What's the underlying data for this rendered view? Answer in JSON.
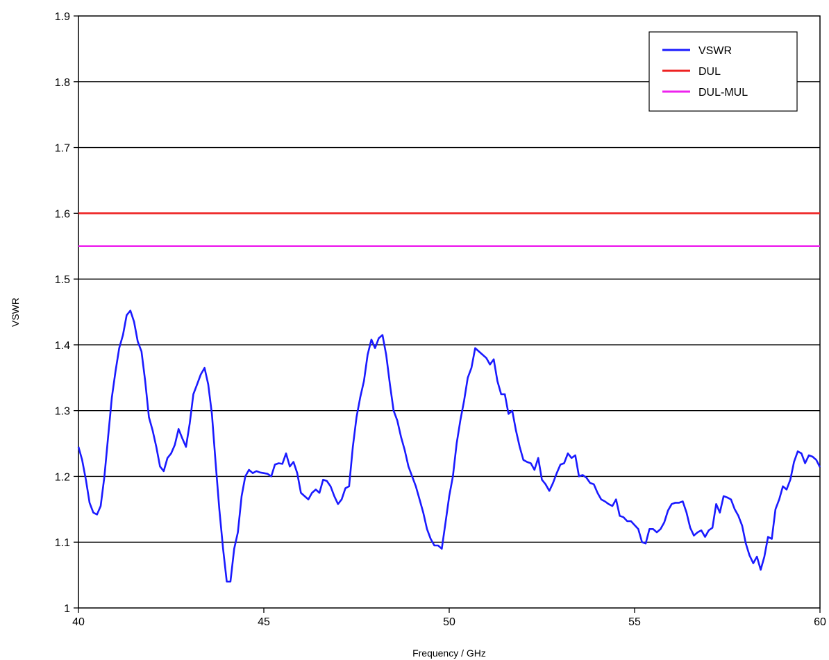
{
  "chart_data": {
    "type": "line",
    "title": "",
    "xlabel": "Frequency / GHz",
    "ylabel": "VSWR",
    "xlim": [
      40,
      60
    ],
    "ylim": [
      1,
      1.9
    ],
    "x_ticks": [
      "40",
      "45",
      "50",
      "55",
      "60"
    ],
    "y_ticks": [
      "1",
      "1.1",
      "1.2",
      "1.3",
      "1.4",
      "1.5",
      "1.6",
      "1.7",
      "1.8",
      "1.9"
    ],
    "grid": "horizontal",
    "legend_position": "top-right",
    "series": [
      {
        "name": "VSWR",
        "color": "#1a1aff",
        "x": [
          40,
          40.1,
          40.2,
          40.3,
          40.4,
          40.5,
          40.6,
          40.7,
          40.8,
          40.9,
          41.0,
          41.1,
          41.2,
          41.3,
          41.4,
          41.5,
          41.6,
          41.7,
          41.8,
          41.9,
          42.0,
          42.1,
          42.2,
          42.3,
          42.4,
          42.5,
          42.6,
          42.7,
          42.8,
          42.9,
          43.0,
          43.1,
          43.2,
          43.3,
          43.4,
          43.5,
          43.6,
          43.7,
          43.8,
          43.9,
          44.0,
          44.1,
          44.2,
          44.3,
          44.4,
          44.5,
          44.6,
          44.7,
          44.8,
          44.9,
          45.0,
          45.1,
          45.2,
          45.3,
          45.4,
          45.5,
          45.6,
          45.7,
          45.8,
          45.9,
          46.0,
          46.1,
          46.2,
          46.3,
          46.4,
          46.5,
          46.6,
          46.7,
          46.8,
          46.9,
          47.0,
          47.1,
          47.2,
          47.3,
          47.4,
          47.5,
          47.6,
          47.7,
          47.8,
          47.9,
          48.0,
          48.1,
          48.2,
          48.3,
          48.4,
          48.5,
          48.6,
          48.7,
          48.8,
          48.9,
          49.0,
          49.1,
          49.2,
          49.3,
          49.4,
          49.5,
          49.6,
          49.7,
          49.8,
          49.9,
          50.0,
          50.1,
          50.2,
          50.3,
          50.4,
          50.5,
          50.6,
          50.7,
          50.8,
          50.9,
          51.0,
          51.1,
          51.2,
          51.3,
          51.4,
          51.5,
          51.6,
          51.7,
          51.8,
          51.9,
          52.0,
          52.1,
          52.2,
          52.3,
          52.4,
          52.5,
          52.6,
          52.7,
          52.8,
          52.9,
          53.0,
          53.1,
          53.2,
          53.3,
          53.4,
          53.5,
          53.6,
          53.7,
          53.8,
          53.9,
          54.0,
          54.1,
          54.2,
          54.3,
          54.4,
          54.5,
          54.6,
          54.7,
          54.8,
          54.9,
          55.0,
          55.1,
          55.2,
          55.3,
          55.4,
          55.5,
          55.6,
          55.7,
          55.8,
          55.9,
          56.0,
          56.1,
          56.2,
          56.3,
          56.4,
          56.5,
          56.6,
          56.7,
          56.8,
          56.9,
          57.0,
          57.1,
          57.2,
          57.3,
          57.4,
          57.5,
          57.6,
          57.7,
          57.8,
          57.9,
          58.0,
          58.1,
          58.2,
          58.3,
          58.4,
          58.5,
          58.6,
          58.7,
          58.8,
          58.9,
          59.0,
          59.1,
          59.2,
          59.3,
          59.4,
          59.5,
          59.6,
          59.7,
          59.8,
          59.9,
          60.0
        ],
        "y": [
          1.245,
          1.225,
          1.195,
          1.16,
          1.145,
          1.142,
          1.155,
          1.2,
          1.26,
          1.32,
          1.36,
          1.395,
          1.415,
          1.445,
          1.452,
          1.435,
          1.405,
          1.39,
          1.345,
          1.29,
          1.27,
          1.245,
          1.215,
          1.208,
          1.228,
          1.235,
          1.248,
          1.272,
          1.258,
          1.245,
          1.28,
          1.325,
          1.34,
          1.355,
          1.365,
          1.34,
          1.295,
          1.22,
          1.15,
          1.09,
          1.04,
          1.04,
          1.09,
          1.115,
          1.17,
          1.2,
          1.21,
          1.205,
          1.208,
          1.206,
          1.205,
          1.204,
          1.2,
          1.218,
          1.22,
          1.219,
          1.235,
          1.215,
          1.222,
          1.205,
          1.175,
          1.17,
          1.165,
          1.175,
          1.18,
          1.175,
          1.195,
          1.193,
          1.185,
          1.17,
          1.158,
          1.165,
          1.182,
          1.185,
          1.245,
          1.29,
          1.32,
          1.345,
          1.385,
          1.408,
          1.395,
          1.41,
          1.415,
          1.385,
          1.34,
          1.3,
          1.285,
          1.26,
          1.24,
          1.215,
          1.2,
          1.185,
          1.165,
          1.145,
          1.12,
          1.105,
          1.095,
          1.095,
          1.09,
          1.13,
          1.17,
          1.2,
          1.25,
          1.285,
          1.315,
          1.35,
          1.365,
          1.395,
          1.39,
          1.385,
          1.38,
          1.37,
          1.378,
          1.345,
          1.325,
          1.325,
          1.295,
          1.3,
          1.27,
          1.245,
          1.225,
          1.222,
          1.22,
          1.21,
          1.228,
          1.195,
          1.188,
          1.178,
          1.19,
          1.205,
          1.218,
          1.22,
          1.235,
          1.228,
          1.232,
          1.2,
          1.202,
          1.198,
          1.19,
          1.188,
          1.175,
          1.165,
          1.162,
          1.158,
          1.155,
          1.165,
          1.14,
          1.138,
          1.132,
          1.132,
          1.126,
          1.12,
          1.1,
          1.098,
          1.12,
          1.12,
          1.115,
          1.12,
          1.13,
          1.148,
          1.158,
          1.16,
          1.16,
          1.162,
          1.145,
          1.122,
          1.11,
          1.115,
          1.118,
          1.108,
          1.118,
          1.122,
          1.158,
          1.145,
          1.17,
          1.168,
          1.165,
          1.15,
          1.14,
          1.125,
          1.098,
          1.08,
          1.068,
          1.078,
          1.058,
          1.078,
          1.108,
          1.105,
          1.15,
          1.165,
          1.185,
          1.18,
          1.195,
          1.222,
          1.238,
          1.235,
          1.22,
          1.232,
          1.23,
          1.225,
          1.214
        ]
      },
      {
        "name": "DUL",
        "color": "#ee2222",
        "x": [
          40,
          60
        ],
        "y": [
          1.6,
          1.6
        ]
      },
      {
        "name": "DUL-MUL",
        "color": "#ee22ee",
        "x": [
          40,
          60
        ],
        "y": [
          1.55,
          1.55
        ]
      }
    ]
  }
}
